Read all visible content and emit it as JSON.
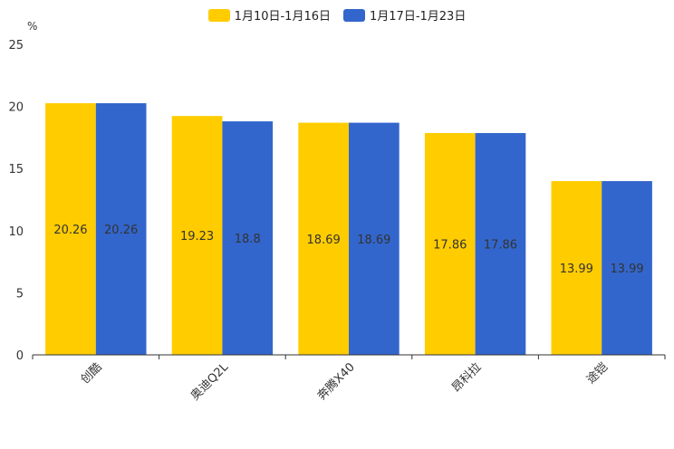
{
  "chart_data": {
    "type": "bar",
    "unit": "%",
    "categories": [
      "创酷",
      "奥迪Q2L",
      "奔腾X40",
      "昂科拉",
      "途铠"
    ],
    "series": [
      {
        "name": "1月10日-1月16日",
        "color": "#FFCC00",
        "values": [
          20.26,
          19.23,
          18.69,
          17.86,
          13.99
        ]
      },
      {
        "name": "1月17日-1月23日",
        "color": "#3366CC",
        "values": [
          20.26,
          18.8,
          18.69,
          17.86,
          13.99
        ]
      }
    ],
    "ylim": [
      0,
      25
    ],
    "yticks": [
      0,
      5,
      10,
      15,
      20,
      25
    ],
    "legend_position": "top-center",
    "grid": false
  }
}
